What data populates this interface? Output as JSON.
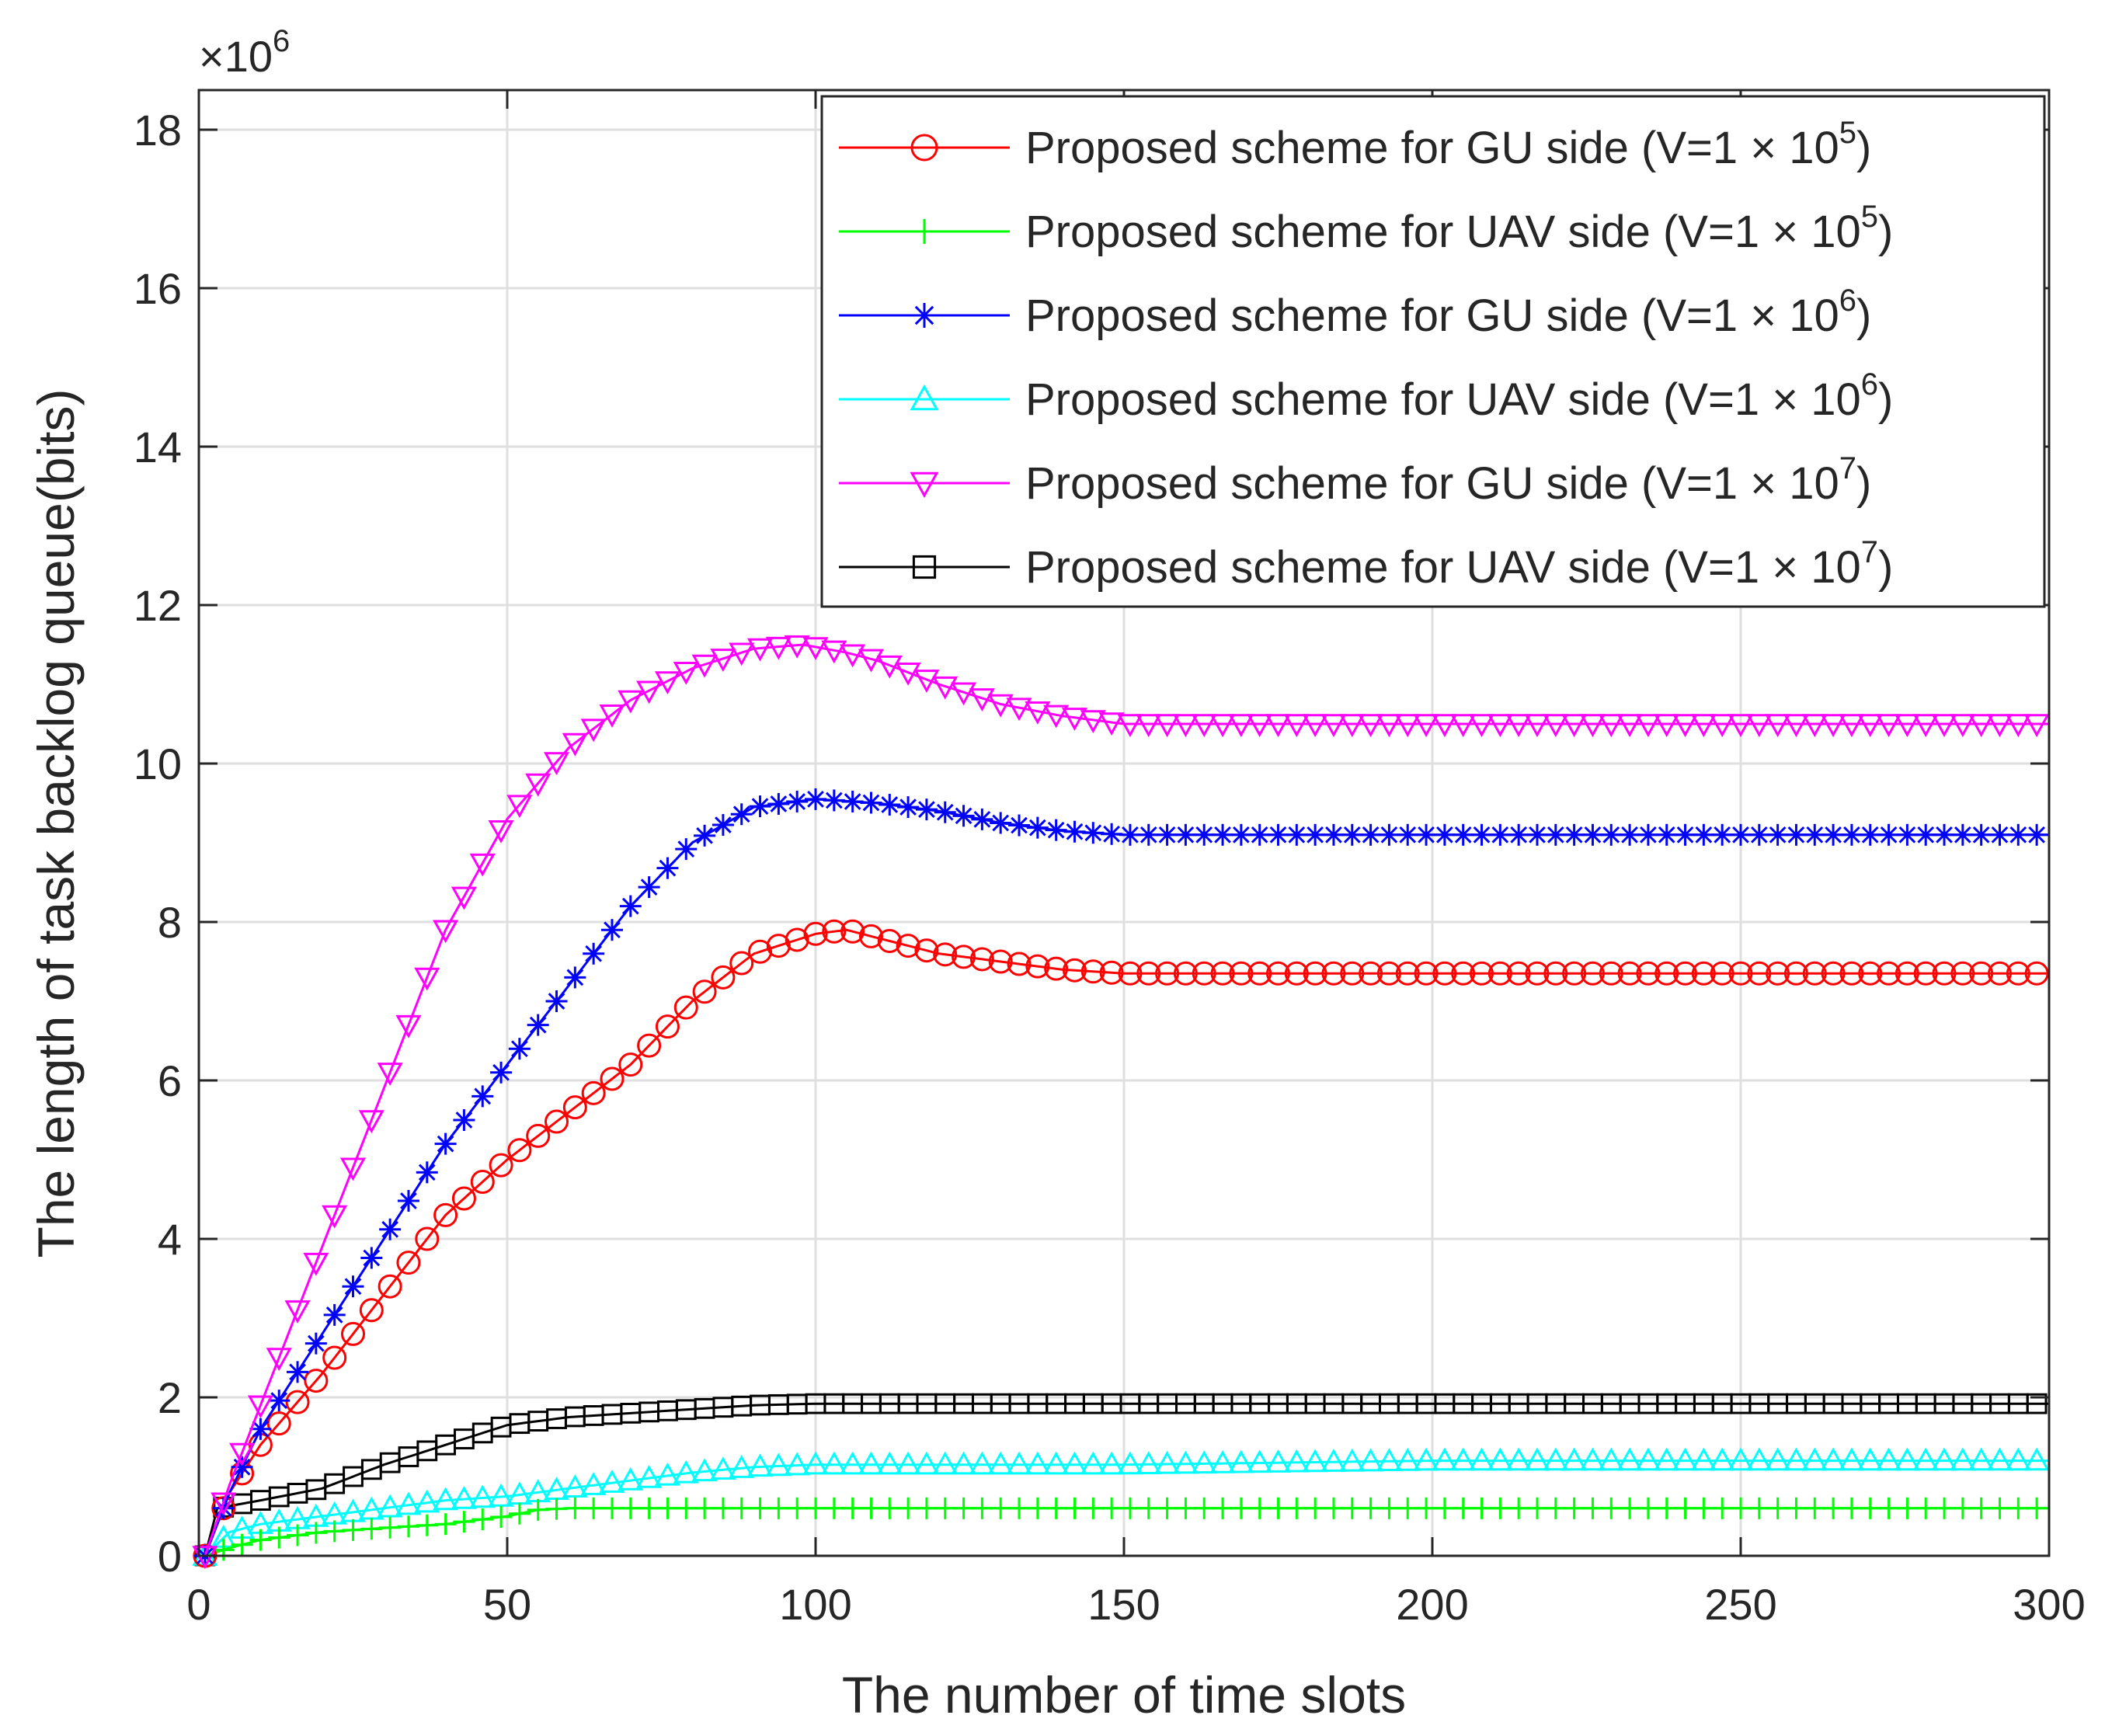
{
  "chart_data": {
    "type": "line",
    "title": "",
    "xlabel": "The number of time slots",
    "ylabel": "The length of task backlog queue(bits)",
    "y_exponent_label": "×10",
    "y_exponent_power": "6",
    "xlim": [
      0,
      300
    ],
    "ylim": [
      0,
      18.5
    ],
    "y_scale_note": "values in units of 10^6 bits",
    "xticks": [
      0,
      50,
      100,
      150,
      200,
      250,
      300
    ],
    "yticks": [
      0,
      2,
      4,
      6,
      8,
      10,
      12,
      14,
      16,
      18
    ],
    "grid": true,
    "legend_position": "top-right",
    "series": [
      {
        "name": "Proposed scheme for GU side (V=1 × 10^5)",
        "legend_text": "Proposed scheme for GU side (V=1 × 10",
        "legend_power": "5",
        "legend_close": ")",
        "color": "#ff0000",
        "marker": "circle",
        "points": [
          [
            1,
            0
          ],
          [
            5,
            0.8
          ],
          [
            10,
            1.4
          ],
          [
            20,
            2.3
          ],
          [
            30,
            3.3
          ],
          [
            40,
            4.3
          ],
          [
            50,
            5.0
          ],
          [
            60,
            5.6
          ],
          [
            70,
            6.2
          ],
          [
            80,
            7.0
          ],
          [
            90,
            7.6
          ],
          [
            100,
            7.85
          ],
          [
            105,
            7.9
          ],
          [
            110,
            7.8
          ],
          [
            120,
            7.6
          ],
          [
            130,
            7.5
          ],
          [
            140,
            7.4
          ],
          [
            150,
            7.35
          ],
          [
            300,
            7.35
          ]
        ]
      },
      {
        "name": "Proposed scheme for UAV side (V=1 × 10^5)",
        "legend_text": "Proposed scheme for UAV side (V=1 × 10",
        "legend_power": "5",
        "legend_close": ")",
        "color": "#00ff00",
        "marker": "plus",
        "points": [
          [
            1,
            0
          ],
          [
            5,
            0.1
          ],
          [
            10,
            0.2
          ],
          [
            20,
            0.3
          ],
          [
            30,
            0.35
          ],
          [
            40,
            0.4
          ],
          [
            50,
            0.5
          ],
          [
            55,
            0.58
          ],
          [
            60,
            0.6
          ],
          [
            300,
            0.6
          ]
        ]
      },
      {
        "name": "Proposed scheme for GU side (V=1 × 10^6)",
        "legend_text": "Proposed scheme for GU side (V=1 × 10",
        "legend_power": "6",
        "legend_close": ")",
        "color": "#0000ff",
        "marker": "asterisk",
        "points": [
          [
            1,
            0
          ],
          [
            5,
            0.8
          ],
          [
            10,
            1.6
          ],
          [
            20,
            2.8
          ],
          [
            30,
            4.0
          ],
          [
            40,
            5.2
          ],
          [
            50,
            6.2
          ],
          [
            60,
            7.2
          ],
          [
            70,
            8.2
          ],
          [
            80,
            9.0
          ],
          [
            90,
            9.45
          ],
          [
            100,
            9.55
          ],
          [
            110,
            9.5
          ],
          [
            120,
            9.4
          ],
          [
            130,
            9.25
          ],
          [
            140,
            9.15
          ],
          [
            150,
            9.1
          ],
          [
            300,
            9.1
          ]
        ]
      },
      {
        "name": "Proposed scheme for UAV side (V=1 × 10^6)",
        "legend_text": "Proposed scheme for UAV side (V=1 × 10",
        "legend_power": "6",
        "legend_close": ")",
        "color": "#00ffff",
        "marker": "triangle-up",
        "points": [
          [
            1,
            0
          ],
          [
            5,
            0.3
          ],
          [
            10,
            0.4
          ],
          [
            20,
            0.5
          ],
          [
            30,
            0.6
          ],
          [
            40,
            0.7
          ],
          [
            50,
            0.75
          ],
          [
            60,
            0.85
          ],
          [
            70,
            0.95
          ],
          [
            80,
            1.05
          ],
          [
            90,
            1.12
          ],
          [
            100,
            1.15
          ],
          [
            150,
            1.15
          ],
          [
            200,
            1.2
          ],
          [
            300,
            1.2
          ]
        ]
      },
      {
        "name": "Proposed scheme for GU side (V=1 × 10^7)",
        "legend_text": "Proposed scheme for GU side (V=1 × 10",
        "legend_power": "7",
        "legend_close": ")",
        "color": "#ff00ff",
        "marker": "triangle-down",
        "points": [
          [
            1,
            0
          ],
          [
            5,
            0.9
          ],
          [
            10,
            1.9
          ],
          [
            20,
            3.9
          ],
          [
            30,
            5.9
          ],
          [
            40,
            7.9
          ],
          [
            50,
            9.3
          ],
          [
            60,
            10.2
          ],
          [
            70,
            10.8
          ],
          [
            80,
            11.2
          ],
          [
            90,
            11.45
          ],
          [
            98,
            11.5
          ],
          [
            105,
            11.4
          ],
          [
            110,
            11.3
          ],
          [
            120,
            11.0
          ],
          [
            130,
            10.75
          ],
          [
            140,
            10.6
          ],
          [
            150,
            10.5
          ],
          [
            300,
            10.5
          ]
        ]
      },
      {
        "name": "Proposed scheme for UAV side (V=1 × 10^7)",
        "legend_text": "Proposed scheme for UAV side (V=1 × 10",
        "legend_power": "7",
        "legend_close": ")",
        "color": "#000000",
        "marker": "square",
        "points": [
          [
            1,
            0
          ],
          [
            3,
            0.6
          ],
          [
            10,
            0.7
          ],
          [
            20,
            0.85
          ],
          [
            30,
            1.15
          ],
          [
            40,
            1.4
          ],
          [
            50,
            1.65
          ],
          [
            60,
            1.75
          ],
          [
            70,
            1.8
          ],
          [
            80,
            1.85
          ],
          [
            90,
            1.9
          ],
          [
            100,
            1.92
          ],
          [
            150,
            1.92
          ],
          [
            200,
            1.92
          ],
          [
            250,
            1.92
          ],
          [
            300,
            1.92
          ]
        ]
      }
    ]
  }
}
